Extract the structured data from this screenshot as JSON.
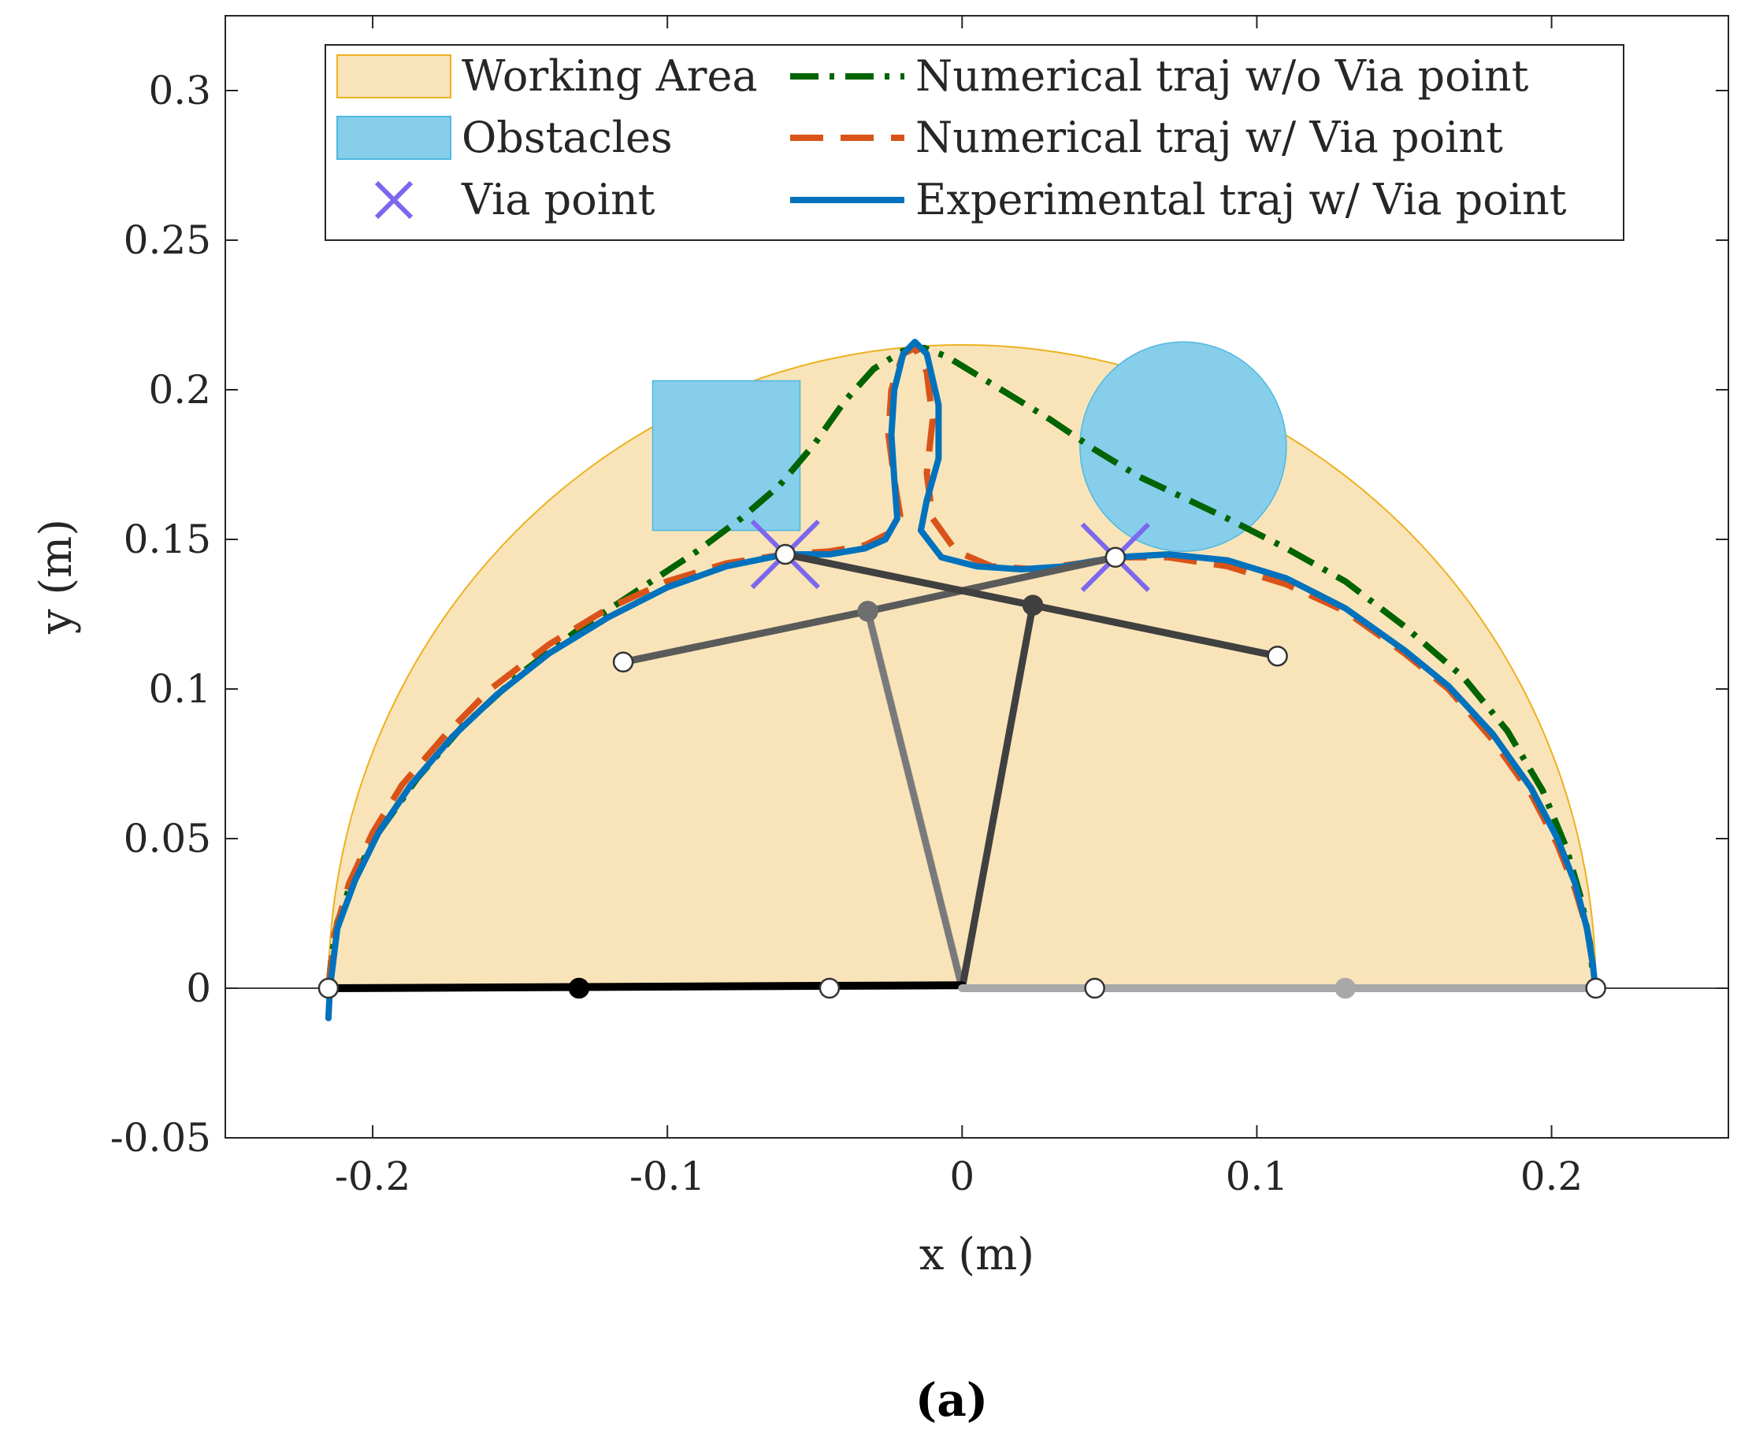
{
  "caption": "(a)",
  "chart_data": {
    "type": "line",
    "xlabel": "x (m)",
    "ylabel": "y (m)",
    "xlim": [
      -0.25,
      0.26
    ],
    "ylim": [
      -0.05,
      0.325
    ],
    "xticks": [
      -0.2,
      -0.1,
      0,
      0.1,
      0.2
    ],
    "xtick_labels": [
      "-0.2",
      "-0.1",
      "0",
      "0.1",
      "0.2"
    ],
    "yticks": [
      -0.05,
      0,
      0.05,
      0.1,
      0.15,
      0.2,
      0.25,
      0.3
    ],
    "ytick_labels": [
      "-0.05",
      "0",
      "0.05",
      "0.1",
      "0.15",
      "0.2",
      "0.25",
      "0.3"
    ],
    "grid": false,
    "legend": {
      "placement": "top",
      "entries": [
        {
          "label": "Working Area",
          "kind": "area",
          "color": "#f9e4b9",
          "edge": "#edb120"
        },
        {
          "label": "Obstacles",
          "kind": "area",
          "color": "#87ceeb",
          "edge": "#4db8e0"
        },
        {
          "label": "Via point",
          "kind": "marker",
          "color": "#7b68ee"
        },
        {
          "label": "Numerical traj w/o Via point",
          "kind": "line",
          "style": "dashdot",
          "color": "#006400"
        },
        {
          "label": "Numerical traj w/ Via point",
          "kind": "line",
          "style": "dashed",
          "color": "#d95319"
        },
        {
          "label": "Experimental traj w/ Via point",
          "kind": "line",
          "style": "solid",
          "color": "#0072bd"
        }
      ]
    },
    "working_area": {
      "type": "semicircle",
      "center": [
        0,
        0
      ],
      "radius": 0.215,
      "color": "#f9e4b9",
      "edge": "#edb120"
    },
    "obstacles": [
      {
        "shape": "rectangle",
        "x": [
          -0.105,
          -0.055
        ],
        "y": [
          0.153,
          0.203
        ],
        "color": "#87ceeb"
      },
      {
        "shape": "circle",
        "center": [
          0.075,
          0.181
        ],
        "radius": 0.035,
        "color": "#87ceeb"
      }
    ],
    "via_points": [
      [
        -0.06,
        0.145
      ],
      [
        0.052,
        0.144
      ]
    ],
    "series": [
      {
        "name": "Numerical traj w/o Via point",
        "color": "#006400",
        "style": "dashdot",
        "points": [
          [
            -0.215,
            0.0
          ],
          [
            -0.214,
            0.01
          ],
          [
            -0.212,
            0.022
          ],
          [
            -0.207,
            0.036
          ],
          [
            -0.198,
            0.052
          ],
          [
            -0.185,
            0.07
          ],
          [
            -0.17,
            0.087
          ],
          [
            -0.15,
            0.105
          ],
          [
            -0.13,
            0.12
          ],
          [
            -0.11,
            0.133
          ],
          [
            -0.09,
            0.146
          ],
          [
            -0.075,
            0.157
          ],
          [
            -0.062,
            0.168
          ],
          [
            -0.05,
            0.182
          ],
          [
            -0.04,
            0.196
          ],
          [
            -0.03,
            0.207
          ],
          [
            -0.02,
            0.213
          ],
          [
            -0.013,
            0.214
          ],
          [
            -0.005,
            0.211
          ],
          [
            0.005,
            0.205
          ],
          [
            0.015,
            0.199
          ],
          [
            0.03,
            0.19
          ],
          [
            0.045,
            0.18
          ],
          [
            0.06,
            0.171
          ],
          [
            0.075,
            0.164
          ],
          [
            0.09,
            0.157
          ],
          [
            0.11,
            0.147
          ],
          [
            0.13,
            0.136
          ],
          [
            0.15,
            0.121
          ],
          [
            0.17,
            0.104
          ],
          [
            0.185,
            0.086
          ],
          [
            0.197,
            0.066
          ],
          [
            0.205,
            0.047
          ],
          [
            0.21,
            0.03
          ],
          [
            0.213,
            0.015
          ],
          [
            0.214,
            0.005
          ]
        ]
      },
      {
        "name": "Numerical traj w/ Via point",
        "color": "#d95319",
        "style": "dashed",
        "points": [
          [
            -0.215,
            0.0
          ],
          [
            -0.213,
            0.018
          ],
          [
            -0.208,
            0.035
          ],
          [
            -0.2,
            0.052
          ],
          [
            -0.19,
            0.068
          ],
          [
            -0.175,
            0.085
          ],
          [
            -0.16,
            0.1
          ],
          [
            -0.14,
            0.115
          ],
          [
            -0.12,
            0.127
          ],
          [
            -0.1,
            0.136
          ],
          [
            -0.08,
            0.142
          ],
          [
            -0.06,
            0.145
          ],
          [
            -0.045,
            0.146
          ],
          [
            -0.033,
            0.148
          ],
          [
            -0.025,
            0.152
          ],
          [
            -0.021,
            0.158
          ],
          [
            -0.023,
            0.17
          ],
          [
            -0.025,
            0.185
          ],
          [
            -0.024,
            0.2
          ],
          [
            -0.02,
            0.212
          ],
          [
            -0.016,
            0.214
          ],
          [
            -0.012,
            0.206
          ],
          [
            -0.01,
            0.19
          ],
          [
            -0.012,
            0.172
          ],
          [
            -0.01,
            0.157
          ],
          [
            -0.002,
            0.146
          ],
          [
            0.01,
            0.141
          ],
          [
            0.025,
            0.14
          ],
          [
            0.04,
            0.142
          ],
          [
            0.052,
            0.144
          ],
          [
            0.07,
            0.144
          ],
          [
            0.09,
            0.141
          ],
          [
            0.11,
            0.135
          ],
          [
            0.13,
            0.126
          ],
          [
            0.15,
            0.112
          ],
          [
            0.165,
            0.1
          ],
          [
            0.18,
            0.083
          ],
          [
            0.193,
            0.065
          ],
          [
            0.202,
            0.048
          ],
          [
            0.208,
            0.033
          ],
          [
            0.212,
            0.02
          ],
          [
            0.214,
            0.008
          ],
          [
            0.215,
            0.0
          ]
        ]
      },
      {
        "name": "Experimental traj w/ Via point",
        "color": "#0072bd",
        "style": "solid",
        "points": [
          [
            -0.215,
            -0.01
          ],
          [
            -0.2145,
            0.0
          ],
          [
            -0.212,
            0.02
          ],
          [
            -0.206,
            0.036
          ],
          [
            -0.198,
            0.052
          ],
          [
            -0.187,
            0.068
          ],
          [
            -0.173,
            0.084
          ],
          [
            -0.158,
            0.098
          ],
          [
            -0.14,
            0.112
          ],
          [
            -0.12,
            0.124
          ],
          [
            -0.1,
            0.134
          ],
          [
            -0.08,
            0.141
          ],
          [
            -0.06,
            0.145
          ],
          [
            -0.045,
            0.145
          ],
          [
            -0.033,
            0.147
          ],
          [
            -0.026,
            0.15
          ],
          [
            -0.022,
            0.157
          ],
          [
            -0.023,
            0.17
          ],
          [
            -0.024,
            0.185
          ],
          [
            -0.023,
            0.2
          ],
          [
            -0.02,
            0.212
          ],
          [
            -0.016,
            0.216
          ],
          [
            -0.012,
            0.212
          ],
          [
            -0.008,
            0.195
          ],
          [
            -0.008,
            0.177
          ],
          [
            -0.012,
            0.163
          ],
          [
            -0.014,
            0.153
          ],
          [
            -0.007,
            0.144
          ],
          [
            0.005,
            0.141
          ],
          [
            0.02,
            0.14
          ],
          [
            0.035,
            0.141
          ],
          [
            0.052,
            0.144
          ],
          [
            0.07,
            0.145
          ],
          [
            0.09,
            0.143
          ],
          [
            0.11,
            0.137
          ],
          [
            0.13,
            0.127
          ],
          [
            0.15,
            0.113
          ],
          [
            0.165,
            0.101
          ],
          [
            0.18,
            0.085
          ],
          [
            0.193,
            0.067
          ],
          [
            0.202,
            0.05
          ],
          [
            0.208,
            0.035
          ],
          [
            0.212,
            0.02
          ],
          [
            0.214,
            0.008
          ],
          [
            0.215,
            -0.001
          ]
        ]
      }
    ],
    "mechanism_links": [
      {
        "color": "#5a5a5a",
        "width": 9,
        "points": [
          [
            -0.115,
            0.109
          ],
          [
            -0.032,
            0.126
          ],
          [
            0.052,
            0.144
          ]
        ]
      },
      {
        "color": "#7a7a7a",
        "width": 9,
        "points": [
          [
            0.0,
            0.0
          ],
          [
            -0.032,
            0.126
          ]
        ]
      },
      {
        "color": "#404040",
        "width": 9,
        "points": [
          [
            -0.06,
            0.145
          ],
          [
            0.024,
            0.128
          ],
          [
            0.107,
            0.111
          ]
        ]
      },
      {
        "color": "#404040",
        "width": 9,
        "points": [
          [
            0.0,
            0.0
          ],
          [
            0.024,
            0.128
          ]
        ]
      },
      {
        "color": "#000000",
        "width": 10,
        "points": [
          [
            -0.215,
            0.0
          ],
          [
            0.0,
            0.001
          ]
        ]
      },
      {
        "color": "#a8a8a8",
        "width": 10,
        "points": [
          [
            0.0,
            0.0
          ],
          [
            0.215,
            0.0
          ]
        ]
      }
    ],
    "joints": [
      {
        "at": [
          -0.215,
          0.0
        ],
        "fill": "#ffffff"
      },
      {
        "at": [
          -0.13,
          0.0
        ],
        "fill": "#000000"
      },
      {
        "at": [
          -0.045,
          0.0
        ],
        "fill": "#ffffff"
      },
      {
        "at": [
          0.045,
          0.0
        ],
        "fill": "#ffffff"
      },
      {
        "at": [
          0.13,
          0.0
        ],
        "fill": "#a8a8a8"
      },
      {
        "at": [
          0.215,
          0.0
        ],
        "fill": "#ffffff"
      },
      {
        "at": [
          -0.115,
          0.109
        ],
        "fill": "#ffffff"
      },
      {
        "at": [
          -0.032,
          0.126
        ],
        "fill": "#6e6e6e"
      },
      {
        "at": [
          0.024,
          0.128
        ],
        "fill": "#404040"
      },
      {
        "at": [
          0.107,
          0.111
        ],
        "fill": "#ffffff"
      },
      {
        "at": [
          -0.06,
          0.145
        ],
        "fill": "#ffffff"
      },
      {
        "at": [
          0.052,
          0.144
        ],
        "fill": "#ffffff"
      }
    ],
    "zero_line": {
      "y": 0,
      "color": "#000000"
    }
  }
}
